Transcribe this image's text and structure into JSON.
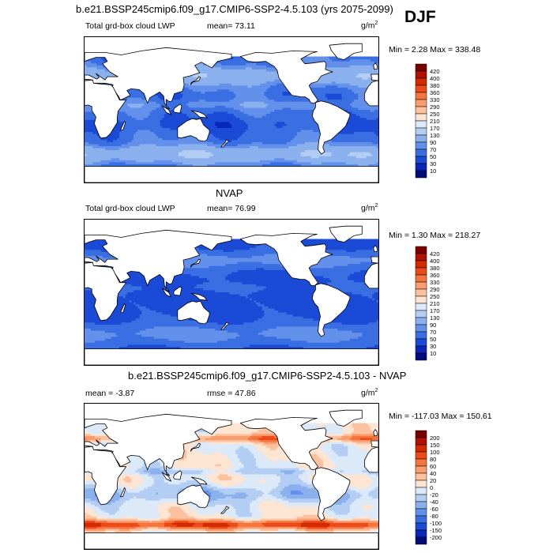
{
  "title": "b.e21.BSSP245cmip6.f09_g17.CMIP6-SSP2-4.5.103 (yrs 2075-2099)",
  "season": "DJF",
  "panels": [
    {
      "id": "model",
      "title": "",
      "left_label": "Total grd-box cloud LWP",
      "center_label": "mean=  73.11",
      "units_base": "g/m",
      "units_exp": "2",
      "minmax": "Min =   2.28 Max = 338.48",
      "colorbar": {
        "labels": [
          "420",
          "400",
          "380",
          "360",
          "330",
          "290",
          "250",
          "210",
          "170",
          "130",
          "90",
          "70",
          "50",
          "30",
          "10"
        ],
        "colors": [
          "#7a0000",
          "#b01200",
          "#d42a00",
          "#ec4a1a",
          "#f5753f",
          "#f99c6e",
          "#fcc19f",
          "#fde5d3",
          "#dce9f8",
          "#b3cdf3",
          "#8bb0ee",
          "#6290ea",
          "#3a6ee3",
          "#1a4ad6",
          "#0a26b8",
          "#000c7a"
        ]
      }
    },
    {
      "id": "obs",
      "title": "NVAP",
      "left_label": "Total grd-box cloud LWP",
      "center_label": "mean=  76.99",
      "units_base": "g/m",
      "units_exp": "2",
      "minmax": "Min =   1.30 Max = 218.27",
      "colorbar": {
        "labels": [
          "420",
          "400",
          "380",
          "360",
          "330",
          "290",
          "250",
          "210",
          "170",
          "130",
          "90",
          "70",
          "50",
          "30",
          "10"
        ],
        "colors": [
          "#7a0000",
          "#b01200",
          "#d42a00",
          "#ec4a1a",
          "#f5753f",
          "#f99c6e",
          "#fcc19f",
          "#fde5d3",
          "#dce9f8",
          "#b3cdf3",
          "#8bb0ee",
          "#6290ea",
          "#3a6ee3",
          "#1a4ad6",
          "#0a26b8",
          "#000c7a"
        ]
      }
    },
    {
      "id": "diff",
      "title": "b.e21.BSSP245cmip6.f09_g17.CMIP6-SSP2-4.5.103 - NVAP",
      "left_label": "mean =  -3.87",
      "center_label": "rmse =  47.86",
      "units_base": "g/m",
      "units_exp": "2",
      "minmax": "Min = -117.03 Max = 150.61",
      "colorbar": {
        "labels": [
          "200",
          "150",
          "100",
          "80",
          "60",
          "40",
          "20",
          "0",
          "-20",
          "-40",
          "-60",
          "-80",
          "-100",
          "-150",
          "-200"
        ],
        "colors": [
          "#7a0000",
          "#b01200",
          "#d42a00",
          "#ec4a1a",
          "#f5753f",
          "#f99c6e",
          "#fcc19f",
          "#fde5d3",
          "#dce9f8",
          "#b3cdf3",
          "#8bb0ee",
          "#6290ea",
          "#3a6ee3",
          "#1a4ad6",
          "#0a26b8",
          "#000c7a"
        ]
      }
    }
  ]
}
